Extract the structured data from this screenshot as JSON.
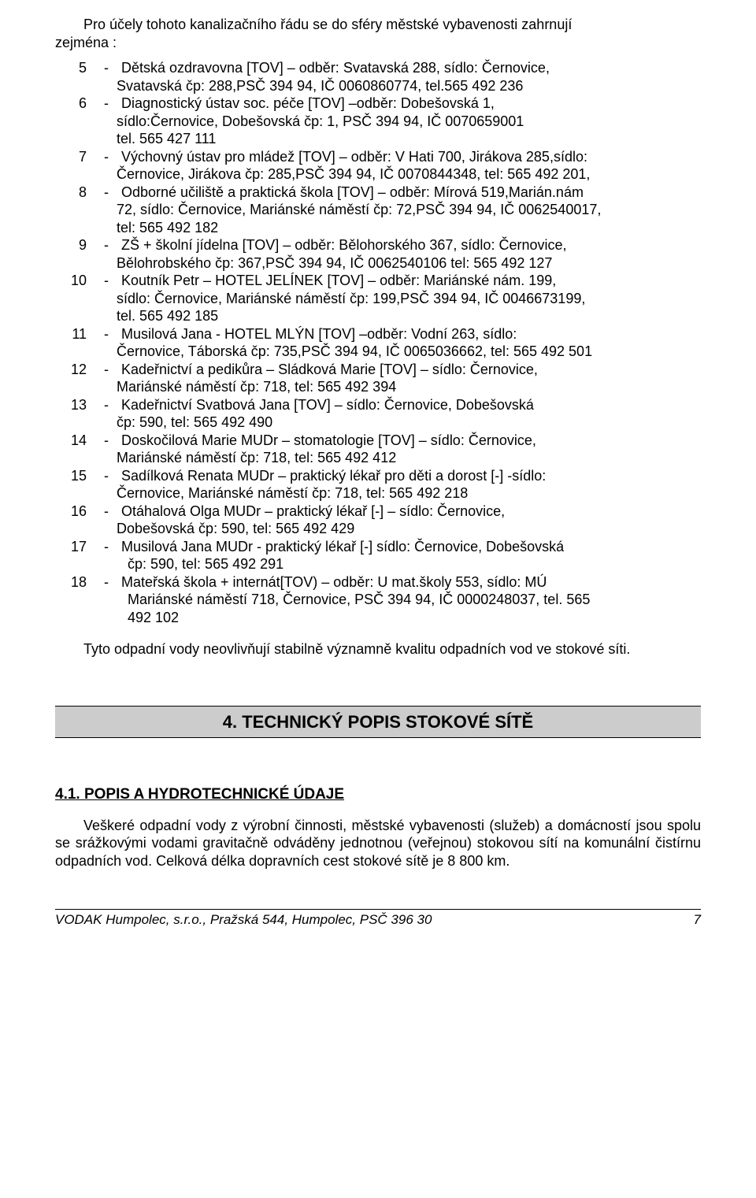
{
  "intro": {
    "line1": "Pro účely tohoto kanalizačního řádu se do sféry městské vybavenosti zahrnují",
    "line2": "zejména :"
  },
  "items": [
    {
      "n": "5",
      "d": "-",
      "l0": "Dětská ozdravovna [TOV] – odběr: Svatavská 288, sídlo: Černovice,",
      "c": [
        "Svatavská čp: 288,PSČ 394 94, IČ 0060860774, tel.565 492 236"
      ]
    },
    {
      "n": "6",
      "d": "-",
      "l0": "Diagnostický ústav soc. péče [TOV] –odběr: Dobešovská 1,",
      "c": [
        "sídlo:Černovice, Dobešovská čp: 1, PSČ 394 94, IČ 0070659001",
        "tel. 565 427 111"
      ]
    },
    {
      "n": "7",
      "d": "-",
      "l0": "Výchovný ústav pro mládež [TOV] – odběr: V Hati 700, Jirákova 285,sídlo:",
      "c": [
        "Černovice, Jirákova čp: 285,PSČ 394 94, IČ 0070844348, tel: 565 492 201,"
      ]
    },
    {
      "n": "8",
      "d": "-",
      "l0": "Odborné učiliště a praktická škola [TOV] – odběr: Mírová 519,Marián.nám",
      "c": [
        "72, sídlo: Černovice, Mariánské náměstí čp: 72,PSČ 394 94, IČ 0062540017,",
        "tel: 565 492 182"
      ]
    },
    {
      "n": "9",
      "d": "-",
      "l0": "ZŠ + školní jídelna [TOV] – odběr: Bělohorského 367, sídlo: Černovice,",
      "c": [
        "Bělohrobského čp: 367,PSČ 394 94, IČ 0062540106 tel: 565 492 127"
      ]
    },
    {
      "n": "10",
      "d": "-",
      "l0": "Koutník Petr – HOTEL JELÍNEK [TOV] – odběr: Mariánské nám. 199,",
      "c": [
        "sídlo: Černovice, Mariánské náměstí čp: 199,PSČ 394 94, IČ 0046673199,",
        "tel. 565 492 185"
      ]
    },
    {
      "n": "11",
      "d": "-",
      "l0": "Musilová Jana -  HOTEL MLÝN [TOV] –odběr: Vodní 263,  sídlo:",
      "c": [
        "Černovice, Táborská čp: 735,PSČ 394 94, IČ 0065036662,  tel: 565 492 501"
      ]
    },
    {
      "n": "12",
      "d": "-",
      "l0": "Kadeřnictví a pedikůra – Sládková Marie [TOV] – sídlo: Černovice,",
      "c": [
        "Mariánské náměstí čp: 718, tel: 565 492 394"
      ]
    },
    {
      "n": "13",
      "d": "-",
      "l0": "Kadeřnictví Svatbová Jana [TOV] – sídlo: Černovice, Dobešovská",
      "c": [
        "čp: 590, tel: 565 492 490"
      ]
    },
    {
      "n": "14",
      "d": "-",
      "l0": "Doskočilová Marie MUDr – stomatologie [TOV] – sídlo: Černovice,",
      "c": [
        "Mariánské náměstí čp: 718, tel: 565 492 412"
      ]
    },
    {
      "n": "15",
      "d": "-",
      "l0": "Sadílková Renata MUDr – praktický lékař pro děti a dorost [-] -sídlo:",
      "c": [
        "Černovice, Mariánské náměstí čp: 718, tel: 565 492 218"
      ]
    },
    {
      "n": "16",
      "d": "-",
      "l0": "Otáhalová Olga MUDr – praktický lékař [-] – sídlo: Černovice,",
      "c": [
        "Dobešovská čp: 590, tel: 565 492 429"
      ]
    },
    {
      "n": "17",
      "d": "-",
      "l0": "Musilová Jana MUDr  - praktický lékař [-] sídlo: Černovice, Dobešovská",
      "c2": [
        "čp: 590, tel: 565 492 291"
      ]
    },
    {
      "n": "18",
      "d": "-",
      "l0": "Mateřská škola + internát[TOV) – odběr: U mat.školy 553, sídlo: MÚ",
      "c2": [
        "Mariánské náměstí 718, Černovice, PSČ 394 94, IČ 0000248037, tel. 565",
        "492 102"
      ]
    }
  ],
  "after": {
    "line1": "Tyto odpadní vody neovlivňují stabilně významně kvalitu odpadních vod ve",
    "line2": "stokové síti."
  },
  "section": {
    "title": "4. TECHNICKÝ  POPIS  STOKOVÉ  SÍTĚ"
  },
  "subsection": {
    "title": "4.1.   POPIS  A  HYDROTECHNICKÉ  ÚDAJE",
    "para": "Veškeré odpadní vody z výrobní činnosti, městské vybavenosti (služeb) a domácností jsou spolu se srážkovými vodami gravitačně odváděny jednotnou (veřejnou) stokovou sítí na komunální čistírnu odpadních vod. Celková délka dopravních cest stokové sítě je 8 800 km."
  },
  "footer": {
    "left": "VODAK Humpolec, s.r.o., Pražská 544, Humpolec, PSČ 396 30",
    "page": "7"
  }
}
